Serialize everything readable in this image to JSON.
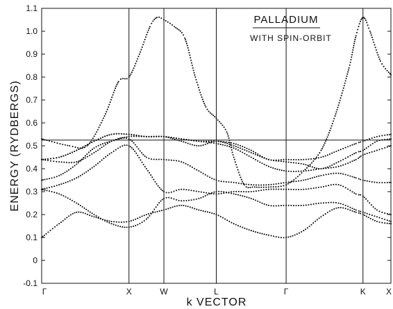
{
  "chart_data": {
    "type": "line",
    "title": "",
    "xlabel": "k VECTOR",
    "ylabel": "ENERGY (RYDBERGS)",
    "annotations": {
      "title": "PALLADIUM",
      "subtitle": "WITH SPIN-ORBIT"
    },
    "ylim": [
      -0.1,
      1.1
    ],
    "yticks": [
      -0.1,
      0,
      0.1,
      0.2,
      0.3,
      0.4,
      0.5,
      0.6,
      0.7,
      0.8,
      0.9,
      1.0,
      1.1
    ],
    "ytick_labels": [
      "-0.1",
      "0",
      "0.1",
      "0.2",
      "0.3",
      "0.4",
      "0.5",
      "0.6",
      "0.7",
      "0.8",
      "0.9",
      "1.0",
      "1.1"
    ],
    "xlim": [
      0,
      10
    ],
    "high_symmetry_points": [
      {
        "label": "Γ",
        "x": 0
      },
      {
        "label": "X",
        "x": 2.5
      },
      {
        "label": "W",
        "x": 3.5
      },
      {
        "label": "L",
        "x": 5.0
      },
      {
        "label": "Γ",
        "x": 7.0
      },
      {
        "label": "K",
        "x": 9.2
      },
      {
        "label": "X",
        "x": 10
      }
    ],
    "fermi_level": 0.525,
    "series": [
      {
        "values": [
          [
            0,
            0.1
          ],
          [
            0.5,
            0.16
          ],
          [
            1.0,
            0.21
          ],
          [
            1.5,
            0.19
          ],
          [
            2.0,
            0.17
          ],
          [
            2.5,
            0.17
          ],
          [
            3.0,
            0.2
          ],
          [
            3.5,
            0.22
          ],
          [
            4.0,
            0.24
          ],
          [
            4.5,
            0.22
          ],
          [
            5.0,
            0.2
          ],
          [
            5.5,
            0.16
          ],
          [
            6.0,
            0.13
          ],
          [
            6.5,
            0.11
          ],
          [
            7.0,
            0.1
          ],
          [
            7.5,
            0.13
          ],
          [
            8.0,
            0.19
          ],
          [
            8.5,
            0.23
          ],
          [
            9.0,
            0.21
          ],
          [
            9.2,
            0.2
          ],
          [
            9.6,
            0.17
          ],
          [
            10.0,
            0.16
          ]
        ]
      },
      {
        "values": [
          [
            0,
            0.31
          ],
          [
            0.5,
            0.29
          ],
          [
            1.0,
            0.25
          ],
          [
            1.5,
            0.2
          ],
          [
            2.0,
            0.16
          ],
          [
            2.5,
            0.145
          ],
          [
            3.0,
            0.18
          ],
          [
            3.5,
            0.27
          ],
          [
            4.0,
            0.26
          ],
          [
            4.5,
            0.27
          ],
          [
            5.0,
            0.3
          ],
          [
            5.5,
            0.29
          ],
          [
            6.0,
            0.27
          ],
          [
            6.5,
            0.24
          ],
          [
            7.0,
            0.24
          ],
          [
            7.5,
            0.24
          ],
          [
            8.0,
            0.25
          ],
          [
            8.5,
            0.25
          ],
          [
            9.0,
            0.22
          ],
          [
            9.2,
            0.21
          ],
          [
            9.6,
            0.19
          ],
          [
            10.0,
            0.17
          ]
        ]
      },
      {
        "values": [
          [
            0,
            0.31
          ],
          [
            0.5,
            0.33
          ],
          [
            1.0,
            0.36
          ],
          [
            1.5,
            0.41
          ],
          [
            2.0,
            0.47
          ],
          [
            2.5,
            0.5
          ],
          [
            3.0,
            0.4
          ],
          [
            3.5,
            0.3
          ],
          [
            4.0,
            0.31
          ],
          [
            4.5,
            0.3
          ],
          [
            5.0,
            0.29
          ],
          [
            5.5,
            0.3
          ],
          [
            6.0,
            0.3
          ],
          [
            6.5,
            0.31
          ],
          [
            7.0,
            0.31
          ],
          [
            7.5,
            0.31
          ],
          [
            8.0,
            0.32
          ],
          [
            8.5,
            0.33
          ],
          [
            9.0,
            0.29
          ],
          [
            9.2,
            0.28
          ],
          [
            9.6,
            0.22
          ],
          [
            10.0,
            0.2
          ]
        ]
      },
      {
        "values": [
          [
            0,
            0.35
          ],
          [
            0.5,
            0.37
          ],
          [
            1.0,
            0.42
          ],
          [
            1.5,
            0.49
          ],
          [
            2.0,
            0.52
          ],
          [
            2.5,
            0.53
          ],
          [
            3.0,
            0.45
          ],
          [
            3.5,
            0.44
          ],
          [
            4.0,
            0.43
          ],
          [
            4.5,
            0.39
          ],
          [
            5.0,
            0.35
          ],
          [
            5.5,
            0.34
          ],
          [
            6.0,
            0.33
          ],
          [
            6.5,
            0.33
          ],
          [
            7.0,
            0.34
          ],
          [
            7.5,
            0.35
          ],
          [
            8.0,
            0.37
          ],
          [
            8.5,
            0.38
          ],
          [
            9.0,
            0.36
          ],
          [
            9.2,
            0.35
          ],
          [
            9.6,
            0.34
          ],
          [
            10.0,
            0.34
          ]
        ]
      },
      {
        "values": [
          [
            0,
            0.44
          ],
          [
            0.5,
            0.43
          ],
          [
            1.0,
            0.43
          ],
          [
            1.5,
            0.47
          ],
          [
            2.0,
            0.52
          ],
          [
            2.5,
            0.54
          ],
          [
            3.0,
            0.54
          ],
          [
            3.5,
            0.54
          ],
          [
            4.0,
            0.53
          ],
          [
            4.5,
            0.52
          ],
          [
            5.0,
            0.51
          ],
          [
            5.5,
            0.49
          ],
          [
            6.0,
            0.45
          ],
          [
            6.5,
            0.41
          ],
          [
            7.0,
            0.39
          ],
          [
            7.5,
            0.39
          ],
          [
            8.0,
            0.4
          ],
          [
            8.5,
            0.41
          ],
          [
            9.0,
            0.44
          ],
          [
            9.2,
            0.46
          ],
          [
            9.6,
            0.48
          ],
          [
            10.0,
            0.5
          ]
        ]
      },
      {
        "values": [
          [
            0,
            0.44
          ],
          [
            0.5,
            0.45
          ],
          [
            1.0,
            0.48
          ],
          [
            1.5,
            0.52
          ],
          [
            2.0,
            0.55
          ],
          [
            2.5,
            0.55
          ],
          [
            3.0,
            0.54
          ],
          [
            3.5,
            0.54
          ],
          [
            4.0,
            0.52
          ],
          [
            4.5,
            0.5
          ],
          [
            5.0,
            0.52
          ],
          [
            5.5,
            0.5
          ],
          [
            6.0,
            0.47
          ],
          [
            6.5,
            0.44
          ],
          [
            7.0,
            0.43
          ],
          [
            7.5,
            0.42
          ],
          [
            8.0,
            0.4
          ],
          [
            8.5,
            0.43
          ],
          [
            9.0,
            0.47
          ],
          [
            9.2,
            0.48
          ],
          [
            9.6,
            0.52
          ],
          [
            10.0,
            0.53
          ]
        ]
      },
      {
        "values": [
          [
            0,
            0.44
          ],
          [
            0.5,
            0.45
          ],
          [
            1.0,
            0.48
          ],
          [
            1.5,
            0.52
          ],
          [
            2.0,
            0.55
          ],
          [
            2.5,
            0.55
          ],
          [
            3.0,
            0.54
          ],
          [
            3.5,
            0.54
          ],
          [
            4.0,
            0.53
          ],
          [
            4.5,
            0.52
          ],
          [
            5.0,
            0.52
          ],
          [
            5.5,
            0.51
          ],
          [
            6.0,
            0.48
          ],
          [
            6.5,
            0.44
          ],
          [
            7.0,
            0.44
          ],
          [
            7.5,
            0.44
          ],
          [
            8.0,
            0.45
          ],
          [
            8.5,
            0.48
          ],
          [
            9.0,
            0.51
          ],
          [
            9.2,
            0.52
          ],
          [
            9.6,
            0.54
          ],
          [
            10.0,
            0.55
          ]
        ]
      },
      {
        "values": [
          [
            0,
            0.53
          ],
          [
            0.8,
            0.5
          ],
          [
            1.3,
            0.5
          ],
          [
            1.8,
            0.63
          ],
          [
            2.2,
            0.78
          ],
          [
            2.5,
            0.8
          ],
          [
            2.8,
            0.9
          ],
          [
            3.1,
            1.02
          ],
          [
            3.3,
            1.06
          ],
          [
            3.5,
            1.05
          ],
          [
            3.8,
            1.02
          ],
          [
            4.1,
            0.97
          ],
          [
            4.4,
            0.8
          ],
          [
            4.7,
            0.67
          ],
          [
            5.0,
            0.62
          ],
          [
            5.3,
            0.56
          ],
          [
            5.5,
            0.45
          ],
          [
            5.8,
            0.33
          ],
          [
            6.1,
            0.32
          ],
          [
            6.5,
            0.32
          ],
          [
            7.0,
            0.33
          ],
          [
            7.5,
            0.39
          ],
          [
            8.0,
            0.48
          ],
          [
            8.4,
            0.63
          ],
          [
            8.8,
            0.84
          ],
          [
            9.0,
            0.98
          ],
          [
            9.2,
            1.06
          ],
          [
            9.4,
            1.0
          ],
          [
            9.7,
            0.87
          ],
          [
            10.0,
            0.81
          ]
        ]
      }
    ]
  }
}
